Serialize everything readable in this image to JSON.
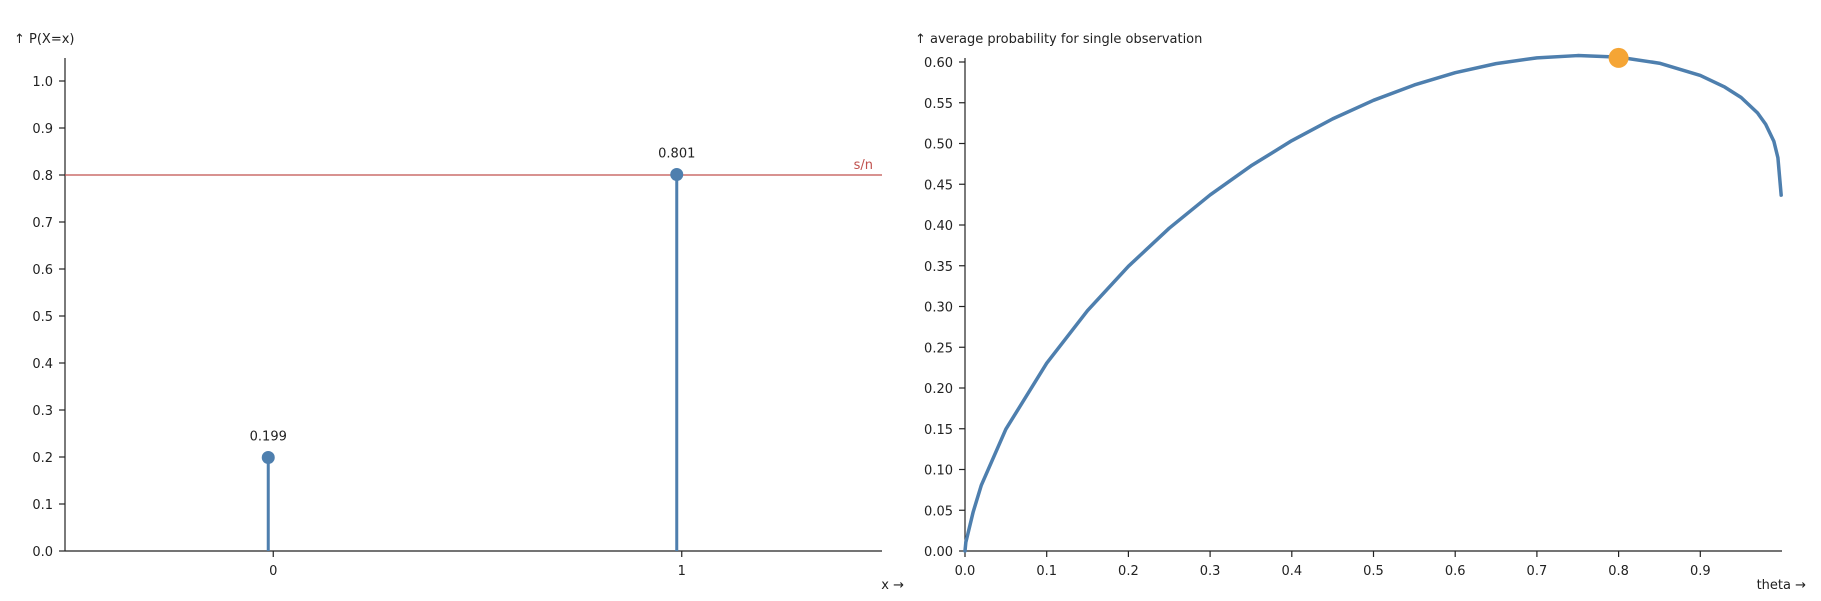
{
  "chart_data": [
    {
      "type": "stem",
      "ylabel": "↑ P(X=x)",
      "xlabel": "x →",
      "categories": [
        "0",
        "1"
      ],
      "x": [
        0,
        1
      ],
      "values": [
        0.199,
        0.801
      ],
      "data_labels": [
        "0.199",
        "0.801"
      ],
      "xlim": [
        -0.5,
        1.5
      ],
      "ylim": [
        0,
        1.05
      ],
      "y_ticks": [
        "0.0",
        "0.1",
        "0.2",
        "0.3",
        "0.4",
        "0.5",
        "0.6",
        "0.7",
        "0.8",
        "0.9",
        "1.0"
      ],
      "x_ticks": [
        "0",
        "1"
      ],
      "reference_line": {
        "y": 0.8,
        "label": "s/n",
        "color": "#c0504d"
      },
      "color": "#4e7fae",
      "grid": false
    },
    {
      "type": "line",
      "ylabel": "↑ average probability for single observation",
      "xlabel": "theta →",
      "xlim": [
        0,
        1
      ],
      "ylim": [
        0,
        0.605
      ],
      "x_ticks": [
        "0.0",
        "0.1",
        "0.2",
        "0.3",
        "0.4",
        "0.5",
        "0.6",
        "0.7",
        "0.8",
        "0.9"
      ],
      "y_ticks": [
        "0.00",
        "0.05",
        "0.10",
        "0.15",
        "0.20",
        "0.25",
        "0.30",
        "0.35",
        "0.40",
        "0.45",
        "0.50",
        "0.55",
        "0.60"
      ],
      "series": [
        {
          "x": [
            0.001,
            0.01,
            0.02,
            0.05,
            0.1,
            0.15,
            0.2,
            0.25,
            0.3,
            0.35,
            0.4,
            0.45,
            0.5,
            0.55,
            0.6,
            0.65,
            0.7,
            0.75,
            0.8,
            0.85,
            0.9,
            0.93,
            0.95,
            0.97,
            0.98,
            0.99,
            0.995,
            0.999
          ],
          "y": [
            0.0106,
            0.0479,
            0.0808,
            0.1495,
            0.2304,
            0.295,
            0.3493,
            0.3961,
            0.4369,
            0.4725,
            0.5035,
            0.5302,
            0.553,
            0.5718,
            0.5869,
            0.598,
            0.6051,
            0.6079,
            0.606,
            0.5985,
            0.5835,
            0.5692,
            0.5564,
            0.5376,
            0.5236,
            0.5028,
            0.4825,
            0.4366
          ]
        }
      ],
      "marker": {
        "x": 0.8,
        "y": 0.605,
        "color": "#f5a535"
      },
      "color": "#4e7fae",
      "grid": false
    }
  ]
}
